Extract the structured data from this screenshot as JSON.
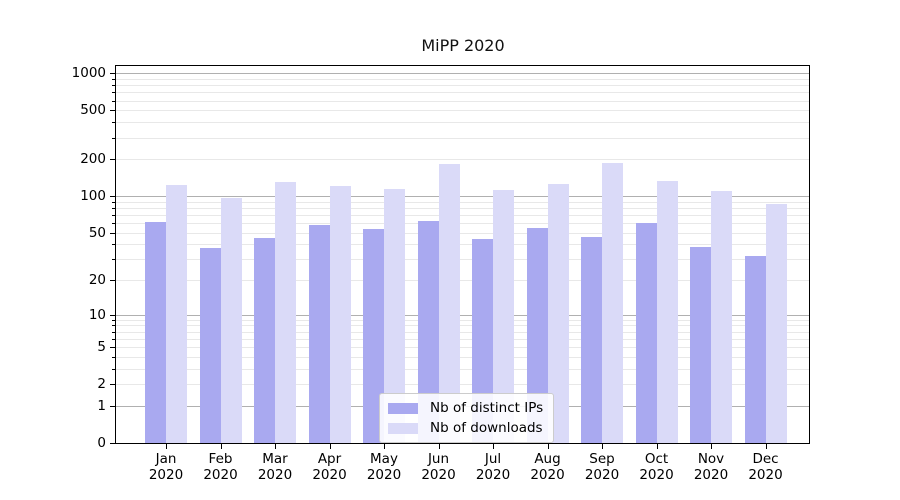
{
  "chart_data": {
    "type": "bar",
    "title": "MiPP 2020",
    "categories": [
      "Jan",
      "Feb",
      "Mar",
      "Apr",
      "May",
      "Jun",
      "Jul",
      "Aug",
      "Sep",
      "Oct",
      "Nov",
      "Dec"
    ],
    "x_tick_labels": [
      [
        "Jan",
        "2020"
      ],
      [
        "Feb",
        "2020"
      ],
      [
        "Mar",
        "2020"
      ],
      [
        "Apr",
        "2020"
      ],
      [
        "May",
        "2020"
      ],
      [
        "Jun",
        "2020"
      ],
      [
        "Jul",
        "2020"
      ],
      [
        "Aug",
        "2020"
      ],
      [
        "Sep",
        "2020"
      ],
      [
        "Oct",
        "2020"
      ],
      [
        "Nov",
        "2020"
      ],
      [
        "Dec",
        "2020"
      ]
    ],
    "series": [
      {
        "name": "Nb of distinct IPs",
        "color": "#a9a9f0",
        "values": [
          61,
          37,
          45,
          58,
          54,
          62,
          44,
          55,
          46,
          60,
          38,
          32
        ]
      },
      {
        "name": "Nb of downloads",
        "color": "#dadaf8",
        "values": [
          123,
          97,
          130,
          120,
          115,
          182,
          113,
          125,
          185,
          132,
          110,
          86
        ]
      }
    ],
    "xlabel": "",
    "ylabel": "",
    "yscale": "log1p",
    "ylim": [
      0,
      1185
    ],
    "yticks": [
      0,
      1,
      2,
      5,
      10,
      20,
      50,
      100,
      200,
      500,
      1000
    ],
    "grid": "both",
    "legend_position": "lower center",
    "colors": {
      "grid_major": "#b0b0b0",
      "grid_minor": "#e8e8e8",
      "spine": "#000000",
      "text": "#000000",
      "legend_border": "#cccccc"
    }
  }
}
